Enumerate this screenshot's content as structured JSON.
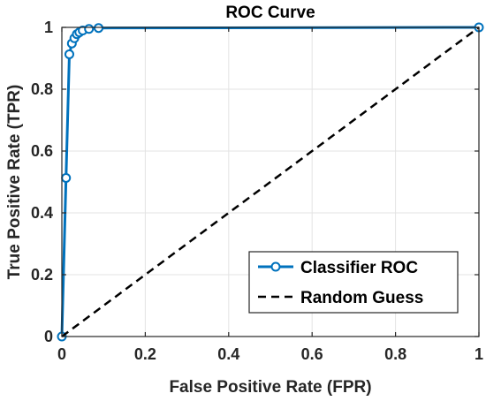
{
  "chart_data": {
    "type": "line",
    "title": "ROC Curve",
    "xlabel": "False Positive Rate (FPR)",
    "ylabel": "True Positive Rate (TPR)",
    "xlim": [
      0,
      1
    ],
    "ylim": [
      0,
      1
    ],
    "grid": true,
    "legend_position": "bottom-right",
    "x_ticks": [
      0,
      0.2,
      0.4,
      0.6,
      0.8,
      1
    ],
    "x_tick_labels": [
      "0",
      "0.2",
      "0.4",
      "0.6",
      "0.8",
      "1"
    ],
    "y_ticks": [
      0,
      0.2,
      0.4,
      0.6,
      0.8,
      1
    ],
    "y_tick_labels": [
      "0",
      "0.2",
      "0.4",
      "0.6",
      "0.8",
      "1"
    ],
    "series": [
      {
        "name": "Classifier ROC",
        "style": "solid",
        "marker": "circle",
        "color": "#0072BD",
        "x": [
          0,
          0.01,
          0.018,
          0.024,
          0.03,
          0.036,
          0.042,
          0.05,
          0.065,
          0.088,
          1
        ],
        "y": [
          0,
          0.513,
          0.913,
          0.948,
          0.965,
          0.978,
          0.984,
          0.99,
          0.995,
          0.998,
          1
        ],
        "markers_x": [
          0,
          0.01,
          0.018,
          0.024,
          0.03,
          0.036,
          0.042,
          0.05,
          0.065,
          0.088,
          1
        ],
        "markers_y": [
          0,
          0.513,
          0.913,
          0.948,
          0.965,
          0.978,
          0.984,
          0.99,
          0.995,
          0.998,
          1
        ]
      },
      {
        "name": "Random Guess",
        "style": "dashed",
        "marker": "none",
        "color": "#000000",
        "x": [
          0,
          1
        ],
        "y": [
          0,
          1
        ]
      }
    ]
  }
}
